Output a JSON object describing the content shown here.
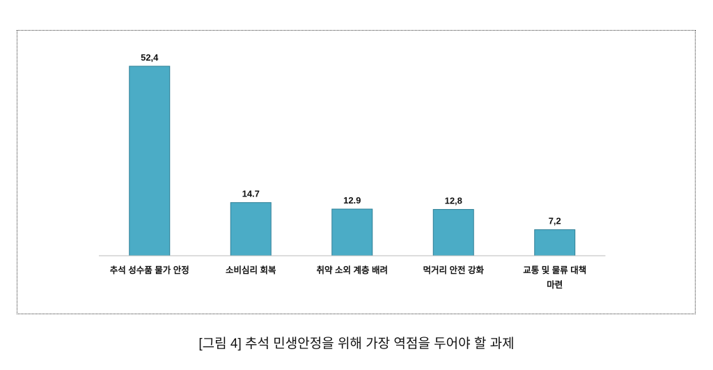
{
  "chart_data": {
    "type": "bar",
    "title": "",
    "xlabel": "",
    "ylabel": "",
    "categories": [
      "추석 성수품 물가 안정",
      "소비심리 회복",
      "취약 소외 계층 배려",
      "먹거리 안전 강화",
      "교통 및 물류 대책 마련"
    ],
    "values": [
      52.4,
      14.7,
      12.9,
      12.8,
      7.2
    ],
    "value_labels": [
      "52,4",
      "14.7",
      "12.9",
      "12,8",
      "7,2"
    ],
    "ylim": [
      0,
      55
    ],
    "grid": false,
    "bar_color": "#4BACC6"
  },
  "caption": "[그림 4] 추석 민생안정을 위해 가장 역점을 두어야 할 과제"
}
